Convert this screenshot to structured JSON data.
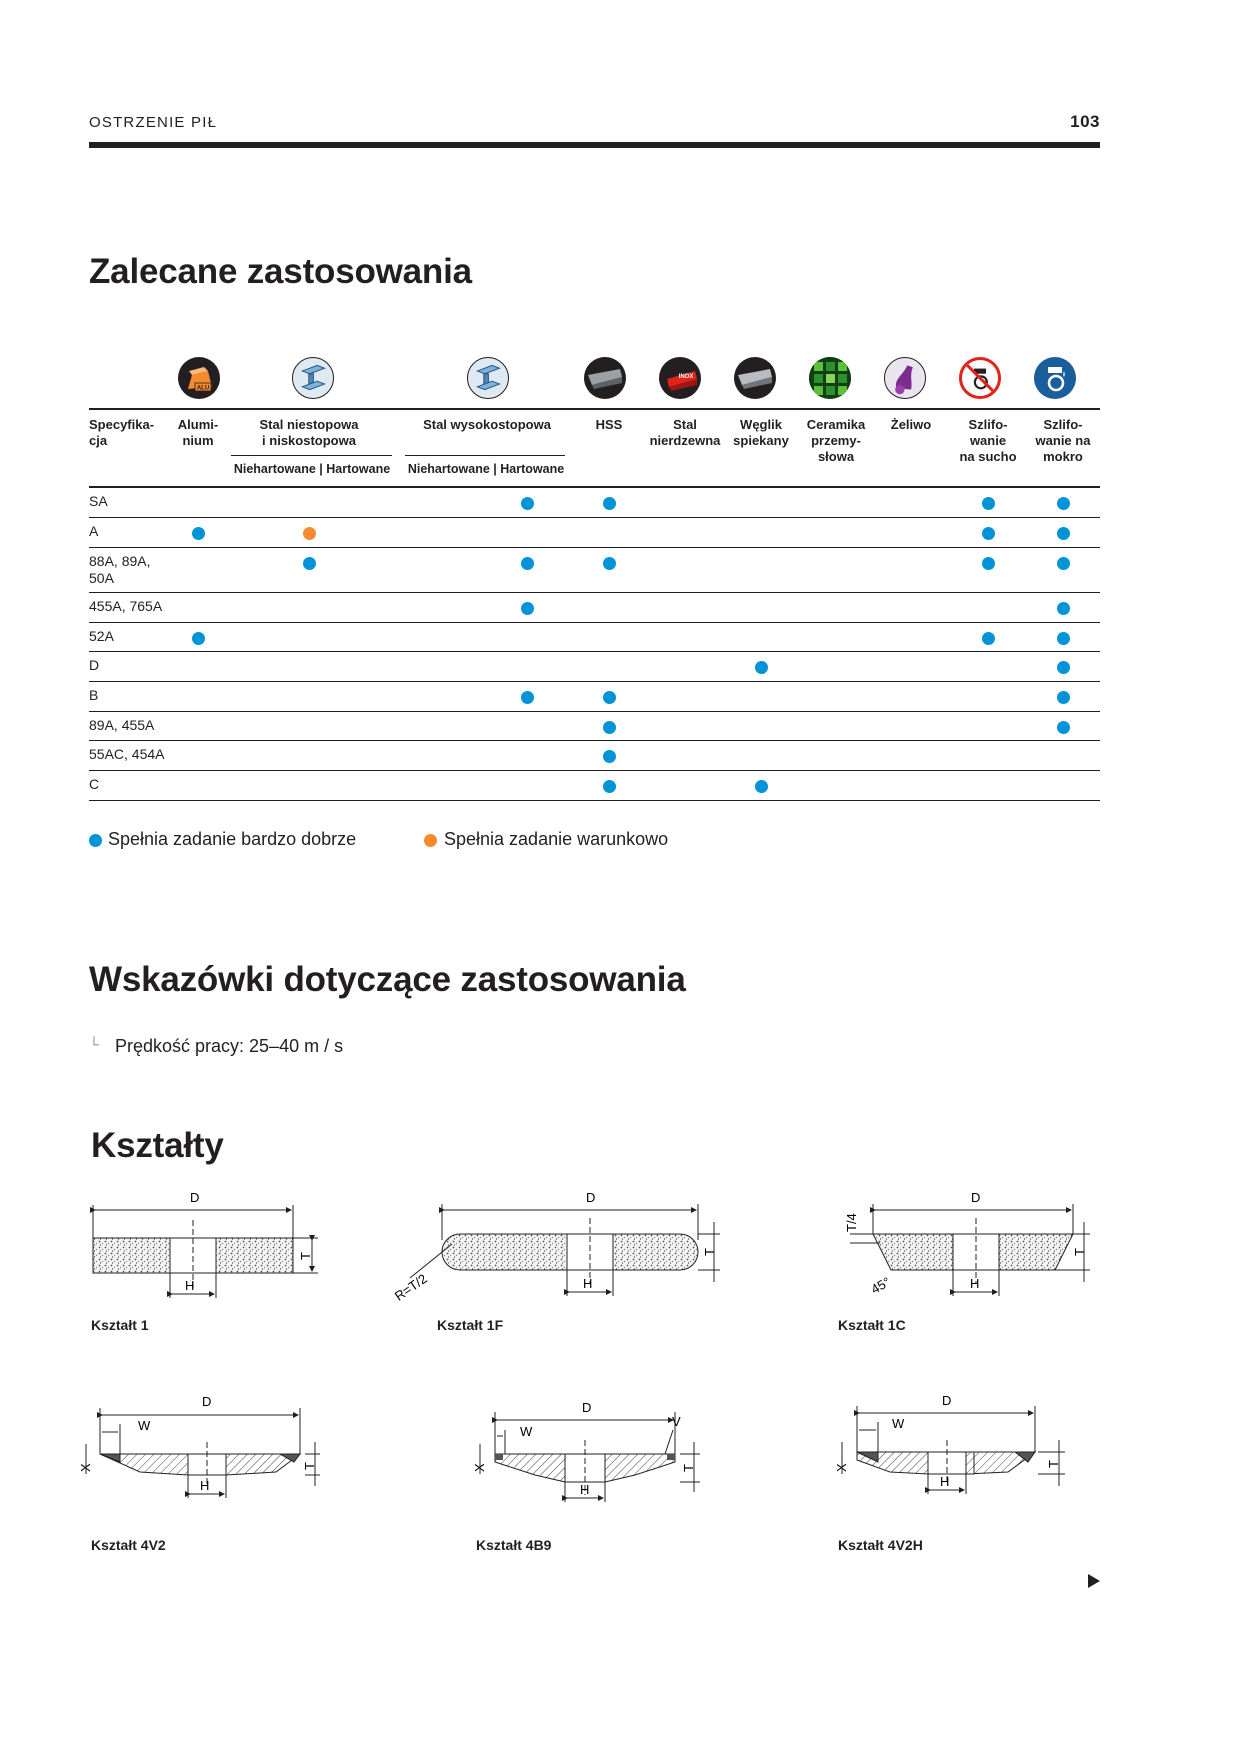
{
  "header": {
    "section": "OSTRZENIE PIŁ",
    "page_number": "103"
  },
  "recommended": {
    "title": "Zalecane zastosowania",
    "spec_header": "Specyfika-\ncja",
    "columns": [
      {
        "label": "Alumi-\nnium",
        "icon": "aluminium-icon"
      },
      {
        "label": "Stal niestopowa\ni niskostopowa",
        "icon": "steel-beam-icon"
      },
      {
        "label": "Stal wysokostopowa",
        "icon": "high-alloy-steel-beam-icon"
      },
      {
        "label": "HSS",
        "icon": "hss-icon"
      },
      {
        "label": "Stal\nnierdzewna",
        "icon": "inox-icon"
      },
      {
        "label": "Węglik\nspiekany",
        "icon": "carbide-icon"
      },
      {
        "label": "Ceramika\nprzemy-\nsłowa",
        "icon": "ceramic-icon"
      },
      {
        "label": "Żeliwo",
        "icon": "cast-iron-icon"
      },
      {
        "label": "Szlifo-\nwanie\nna sucho",
        "icon": "dry-grinding-icon"
      },
      {
        "label": "Szlifo-\nwanie na\nmokro",
        "icon": "wet-grinding-icon"
      }
    ],
    "subheaders": [
      "Niehartowane | Hartowane",
      "Niehartowane | Hartowane"
    ],
    "rows": [
      {
        "spec": "SA",
        "marks": [
          [
            5,
            "good"
          ],
          [
            6,
            "good"
          ],
          [
            11,
            "good"
          ],
          [
            12,
            "good"
          ]
        ]
      },
      {
        "spec": "A",
        "marks": [
          [
            1,
            "good"
          ],
          [
            2,
            "cond"
          ],
          [
            11,
            "good"
          ],
          [
            12,
            "good"
          ]
        ]
      },
      {
        "spec": "88A, 89A,\n50A",
        "marks": [
          [
            2,
            "good"
          ],
          [
            5,
            "good"
          ],
          [
            6,
            "good"
          ],
          [
            11,
            "good"
          ],
          [
            12,
            "good"
          ]
        ]
      },
      {
        "spec": "455A, 765A",
        "marks": [
          [
            5,
            "good"
          ],
          [
            12,
            "good"
          ]
        ]
      },
      {
        "spec": "52A",
        "marks": [
          [
            1,
            "good"
          ],
          [
            11,
            "good"
          ],
          [
            12,
            "good"
          ]
        ]
      },
      {
        "spec": "D",
        "marks": [
          [
            8,
            "good"
          ],
          [
            12,
            "good"
          ]
        ]
      },
      {
        "spec": "B",
        "marks": [
          [
            5,
            "good"
          ],
          [
            6,
            "good"
          ],
          [
            12,
            "good"
          ]
        ]
      },
      {
        "spec": "89A, 455A",
        "marks": [
          [
            6,
            "good"
          ],
          [
            12,
            "good"
          ]
        ]
      },
      {
        "spec": "55AC, 454A",
        "marks": [
          [
            6,
            "good"
          ]
        ]
      },
      {
        "spec": "C",
        "marks": [
          [
            6,
            "good"
          ],
          [
            8,
            "good"
          ]
        ]
      }
    ],
    "legend": {
      "good": "Spełnia zadanie bardzo dobrze",
      "conditional": "Spełnia zadanie warunkowo"
    },
    "colors": {
      "good": "#0093d8",
      "conditional": "#f58a2e"
    }
  },
  "hints": {
    "title": "Wskazówki dotyczące zastosowania",
    "items": [
      "Prędkość pracy: 25–40 m / s"
    ]
  },
  "shapes": {
    "title": "Kształty",
    "labels": {
      "D": "D",
      "H": "H",
      "T": "T",
      "W": "W",
      "X": "X",
      "V": "V",
      "R": "R=T/2",
      "T4": "T/4",
      "angle": "45°"
    },
    "items": [
      "Kształt 1",
      "Kształt 1F",
      "Kształt 1C",
      "Kształt 4V2",
      "Kształt 4B9",
      "Kształt 4V2H"
    ]
  }
}
